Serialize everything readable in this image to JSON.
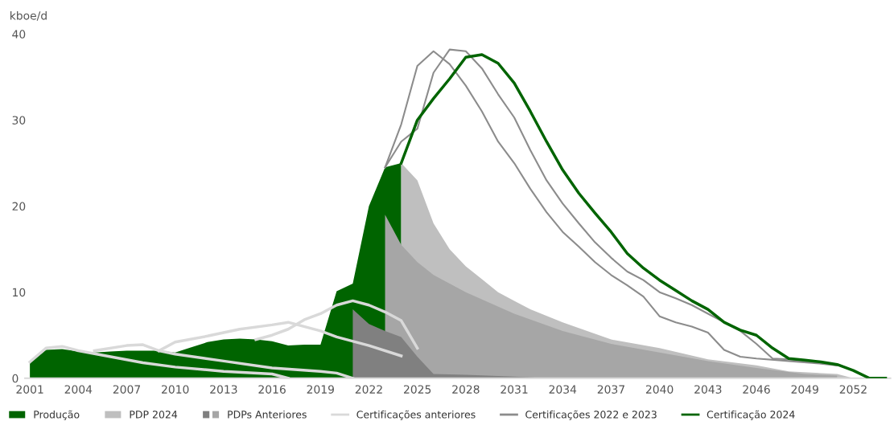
{
  "chart_data": {
    "type": "area",
    "ylabel": "kboe/d",
    "xlim": [
      2000.7,
      2054.3
    ],
    "ylim": [
      0,
      40
    ],
    "xticks": [
      2001,
      2004,
      2007,
      2010,
      2013,
      2016,
      2019,
      2022,
      2025,
      2028,
      2031,
      2034,
      2037,
      2040,
      2043,
      2046,
      2049,
      2052
    ],
    "yticks": [
      0,
      10,
      20,
      30,
      40
    ],
    "grid": false,
    "legend": "bottom",
    "series": [
      {
        "name": "Produção",
        "color": "#006400",
        "x": [
          2001,
          2002,
          2003,
          2004,
          2005,
          2006,
          2007,
          2008,
          2009,
          2010,
          2011,
          2012,
          2013,
          2014,
          2015,
          2016,
          2017,
          2018,
          2019,
          2020,
          2021,
          2022,
          2023,
          2024
        ],
        "values": [
          1.8,
          3.3,
          3.4,
          3.1,
          3.0,
          3.1,
          3.2,
          3.2,
          3.2,
          3.0,
          3.6,
          4.2,
          4.5,
          4.6,
          4.5,
          4.3,
          3.8,
          3.9,
          3.9,
          10.1,
          11.0,
          20.0,
          24.5,
          25.0
        ]
      },
      {
        "name": "PDP 2024",
        "color": "#bfbfbf",
        "x": [
          2024,
          2025,
          2026,
          2027,
          2028,
          2029,
          2030,
          2031,
          2032,
          2034,
          2037,
          2040,
          2043,
          2046,
          2048,
          2051,
          2052
        ],
        "values": [
          25.0,
          23.0,
          18.0,
          15.0,
          13.0,
          11.5,
          10.0,
          9.0,
          8.0,
          6.5,
          4.5,
          3.5,
          2.2,
          1.5,
          0.8,
          0.5,
          0
        ]
      },
      {
        "name": "PDPs Anteriores",
        "color": "#a6a6a6",
        "x": [
          2023,
          2024,
          2025,
          2026,
          2028,
          2031,
          2034,
          2037,
          2040,
          2043,
          2046,
          2049,
          2051
        ],
        "values": [
          19.0,
          15.5,
          13.5,
          12.0,
          10.0,
          7.5,
          5.5,
          4.0,
          3.0,
          2.0,
          1.2,
          0.5,
          0.3
        ]
      },
      {
        "color": "#808080",
        "x": [
          2021,
          2022,
          2023,
          2024,
          2025,
          2026,
          2028,
          2031,
          2033
        ],
        "values": [
          8.0,
          6.3,
          5.5,
          4.8,
          2.5,
          0.5,
          0.4,
          0.2,
          0
        ]
      },
      {
        "name": "Certificações anteriores",
        "type": "line",
        "color": "#d9d9d9",
        "x": [
          2001,
          2002,
          2003,
          2004,
          2006,
          2008,
          2010,
          2013,
          2016,
          2017
        ],
        "values": [
          1.9,
          3.5,
          3.7,
          3.2,
          2.5,
          1.8,
          1.3,
          0.8,
          0.5,
          0
        ]
      },
      {
        "type": "line",
        "color": "#d9d9d9",
        "x": [
          2005,
          2007,
          2008,
          2009,
          2010,
          2013,
          2016,
          2019,
          2020,
          2021
        ],
        "values": [
          3.2,
          3.8,
          3.9,
          3.2,
          2.8,
          2.0,
          1.2,
          0.8,
          0.6,
          0
        ]
      },
      {
        "type": "line",
        "color": "#d9d9d9",
        "x": [
          2009,
          2010,
          2012,
          2014,
          2016,
          2017,
          2019,
          2020,
          2022,
          2024
        ],
        "values": [
          3.2,
          4.2,
          4.9,
          5.7,
          6.2,
          6.5,
          5.5,
          4.8,
          3.8,
          2.6
        ]
      },
      {
        "type": "line",
        "color": "#d9d9d9",
        "x": [
          2015,
          2016,
          2017,
          2018,
          2019,
          2020,
          2021,
          2022,
          2023,
          2024,
          2025
        ],
        "values": [
          4.5,
          5.0,
          5.7,
          6.8,
          7.5,
          8.5,
          9.0,
          8.5,
          7.7,
          6.7,
          3.5
        ]
      },
      {
        "name": "Certificações 2022 e 2023",
        "type": "line",
        "color": "#8c8c8c",
        "x": [
          2023,
          2024,
          2025,
          2026,
          2027,
          2028,
          2029,
          2030,
          2031,
          2032,
          2033,
          2034,
          2035,
          2036,
          2037,
          2038,
          2039,
          2040,
          2041,
          2042,
          2043,
          2044,
          2045,
          2046,
          2048,
          2050,
          2051
        ],
        "values": [
          24.5,
          29.5,
          36.3,
          38.0,
          36.5,
          34.0,
          31.0,
          27.5,
          25.0,
          22.0,
          19.3,
          17.0,
          15.3,
          13.5,
          12.0,
          10.8,
          9.5,
          7.2,
          6.5,
          6.0,
          5.3,
          3.3,
          2.5,
          2.3,
          2.0,
          1.7,
          1.5
        ]
      },
      {
        "type": "line",
        "color": "#8c8c8c",
        "x": [
          2023,
          2024,
          2025,
          2026,
          2027,
          2028,
          2029,
          2030,
          2031,
          2032,
          2033,
          2034,
          2035,
          2036,
          2037,
          2038,
          2039,
          2040,
          2041,
          2042,
          2043,
          2044,
          2045,
          2046,
          2047,
          2048,
          2050,
          2051
        ],
        "values": [
          24.5,
          27.5,
          29.0,
          35.5,
          38.2,
          38.0,
          36.0,
          33.0,
          30.3,
          26.5,
          23.0,
          20.3,
          18.0,
          15.8,
          14.0,
          12.4,
          11.4,
          10.0,
          9.3,
          8.5,
          7.5,
          6.5,
          5.5,
          4.0,
          2.3,
          2.2,
          1.8,
          1.5
        ]
      },
      {
        "name": "Certificação 2024",
        "type": "line",
        "color": "#006400",
        "x": [
          2024,
          2025,
          2026,
          2027,
          2028,
          2029,
          2030,
          2031,
          2032,
          2033,
          2034,
          2035,
          2036,
          2037,
          2038,
          2039,
          2040,
          2041,
          2042,
          2043,
          2044,
          2045,
          2046,
          2047,
          2048,
          2049,
          2050,
          2051,
          2052,
          2053,
          2054
        ],
        "values": [
          25.0,
          30.0,
          32.5,
          34.8,
          37.3,
          37.6,
          36.6,
          34.3,
          31.0,
          27.5,
          24.2,
          21.5,
          19.2,
          17.0,
          14.5,
          12.8,
          11.4,
          10.2,
          9.0,
          8.0,
          6.5,
          5.6,
          5.0,
          3.5,
          2.3,
          2.1,
          1.9,
          1.6,
          0.9,
          0,
          0
        ]
      }
    ]
  }
}
